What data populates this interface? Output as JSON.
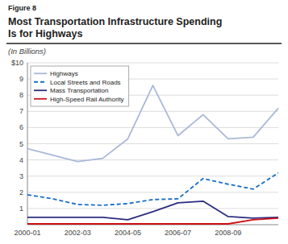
{
  "chart_data": {
    "type": "line",
    "title": "Most Transportation Infrastructure Spending\nIs for Highways",
    "subtitle": "(In Billions)",
    "annotations": [
      {
        "text": "Figure 8"
      }
    ],
    "categories": [
      "2000-01",
      null,
      "2002-03",
      null,
      "2004-05",
      null,
      "2006-07",
      null,
      "2008-09",
      null,
      null
    ],
    "series": [
      {
        "name": "Highways",
        "color": "#aab8d8",
        "line_style": "solid",
        "values": [
          4.7,
          4.3,
          3.9,
          4.1,
          5.3,
          8.6,
          5.5,
          6.8,
          5.3,
          5.4,
          7.2
        ]
      },
      {
        "name": "Local Streets and Roads",
        "color": "#1a6ec8",
        "line_style": "dashed",
        "values": [
          1.85,
          1.6,
          1.25,
          1.2,
          1.3,
          1.55,
          1.6,
          2.85,
          2.5,
          2.2,
          3.2
        ]
      },
      {
        "name": "Mass Transportation",
        "color": "#2c2c80",
        "line_style": "solid",
        "values": [
          0.45,
          0.45,
          0.45,
          0.45,
          0.3,
          0.8,
          1.35,
          1.45,
          0.5,
          0.4,
          0.45
        ]
      },
      {
        "name": "High-Speed Rail Authority",
        "color": "#cc1010",
        "line_style": "solid",
        "values": [
          0.05,
          0.05,
          0.05,
          0.05,
          0.05,
          0.05,
          0.05,
          0.05,
          0.05,
          0.3,
          0.4
        ]
      }
    ],
    "ylim": [
      0,
      10
    ],
    "yticks": [
      1,
      2,
      3,
      4,
      5,
      6,
      7,
      8,
      9,
      {
        "value": 10,
        "label": "$10"
      }
    ],
    "grid": true,
    "legend": "upper left"
  }
}
